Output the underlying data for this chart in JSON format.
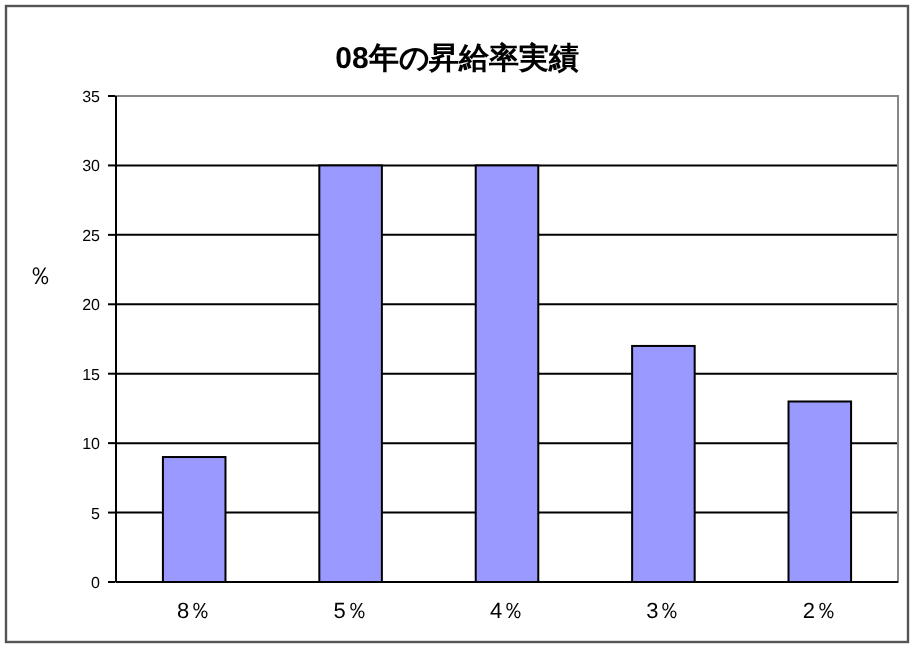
{
  "chart_data": {
    "type": "bar",
    "title": "08年の昇給率実績",
    "ylabel": "％",
    "categories": [
      "8％",
      "5％",
      "4％",
      "3％",
      "2％"
    ],
    "series": [
      {
        "color": "#9999ff",
        "values": [
          9,
          30,
          30,
          17,
          13
        ]
      }
    ],
    "ylim": [
      0,
      35
    ],
    "yticks": [
      0,
      5,
      10,
      15,
      20,
      25,
      30,
      35
    ],
    "grid": "y"
  }
}
